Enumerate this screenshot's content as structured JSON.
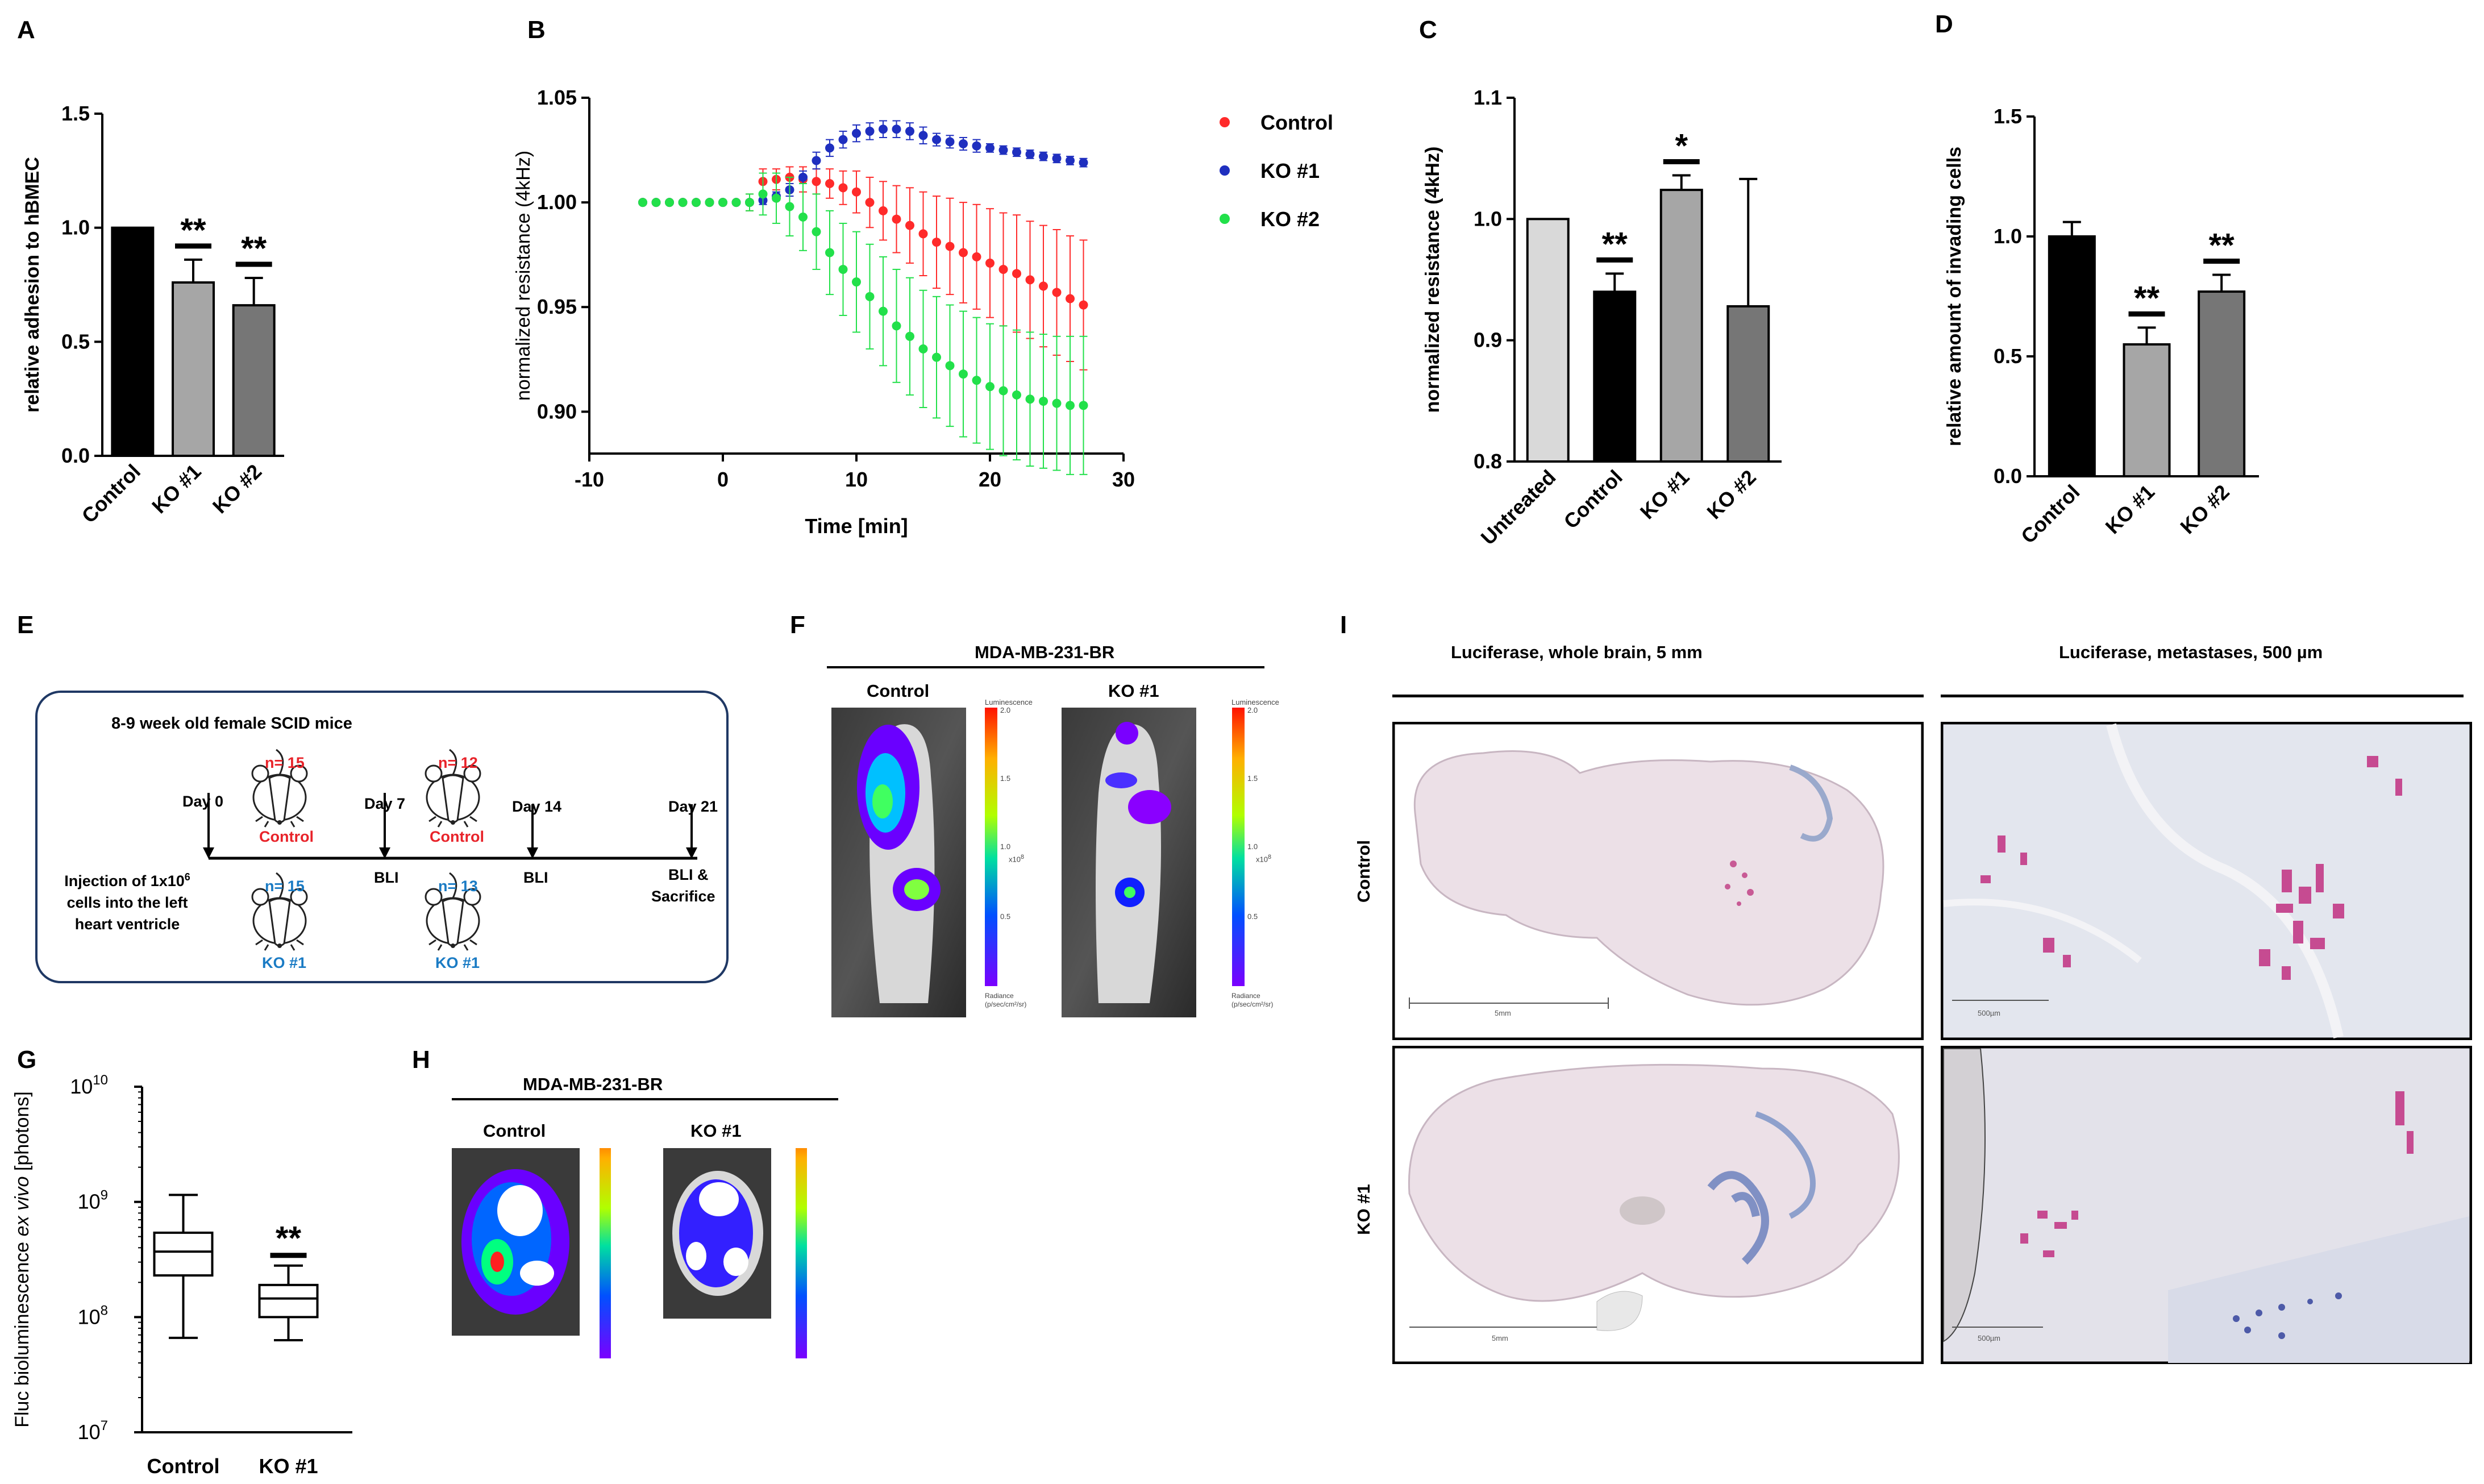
{
  "panel_letters": {
    "A": "A",
    "B": "B",
    "C": "C",
    "D": "D",
    "E": "E",
    "F": "F",
    "G": "G",
    "H": "H",
    "I": "I"
  },
  "chart_data": [
    {
      "panel": "A",
      "type": "bar",
      "title": "",
      "ylabel": "relative adhesion to hBMEC",
      "ylim": [
        0,
        1.5
      ],
      "yticks": [
        0.0,
        0.5,
        1.0,
        1.5
      ],
      "categories": [
        "Control",
        "KO #1",
        "KO #2"
      ],
      "values": [
        1.0,
        0.76,
        0.66
      ],
      "errors": [
        0,
        0.1,
        0.12
      ],
      "colors": [
        "#000000",
        "#a6a6a6",
        "#767676"
      ],
      "significance": [
        "",
        "**",
        "**"
      ]
    },
    {
      "panel": "B",
      "type": "scatter",
      "title": "",
      "xlabel": "Time [min]",
      "ylabel": "normalized resistance (4kHz)",
      "xlim": [
        -10,
        30
      ],
      "ylim": [
        0.88,
        1.05
      ],
      "xticks": [
        -10,
        0,
        10,
        20,
        30
      ],
      "yticks": [
        0.9,
        0.95,
        1.0,
        1.05
      ],
      "series": [
        {
          "name": "Control",
          "color": "#ff2a2a",
          "x": [
            -6,
            -5,
            -4,
            -3,
            -2,
            -1,
            0,
            1,
            2,
            3,
            4,
            5,
            6,
            7,
            8,
            9,
            10,
            11,
            12,
            13,
            14,
            15,
            16,
            17,
            18,
            19,
            20,
            21,
            22,
            23,
            24,
            25,
            26,
            27
          ],
          "y": [
            1.0,
            1.0,
            1.0,
            1.0,
            1.0,
            1.0,
            1.0,
            1.0,
            1.0,
            1.01,
            1.011,
            1.012,
            1.011,
            1.01,
            1.009,
            1.007,
            1.005,
            1.0,
            0.996,
            0.992,
            0.989,
            0.985,
            0.981,
            0.979,
            0.976,
            0.974,
            0.971,
            0.968,
            0.966,
            0.963,
            0.96,
            0.957,
            0.954,
            0.951
          ],
          "err": [
            0,
            0,
            0,
            0,
            0,
            0,
            0,
            0,
            0.004,
            0.006,
            0.005,
            0.005,
            0.006,
            0.006,
            0.007,
            0.008,
            0.01,
            0.012,
            0.014,
            0.016,
            0.018,
            0.02,
            0.022,
            0.023,
            0.024,
            0.025,
            0.026,
            0.027,
            0.028,
            0.028,
            0.029,
            0.03,
            0.03,
            0.031
          ]
        },
        {
          "name": "KO #1",
          "color": "#1f2fbf",
          "x": [
            -6,
            -5,
            -4,
            -3,
            -2,
            -1,
            0,
            1,
            2,
            3,
            4,
            5,
            6,
            7,
            8,
            9,
            10,
            11,
            12,
            13,
            14,
            15,
            16,
            17,
            18,
            19,
            20,
            21,
            22,
            23,
            24,
            25,
            26,
            27
          ],
          "y": [
            1.0,
            1.0,
            1.0,
            1.0,
            1.0,
            1.0,
            1.0,
            1.0,
            1.0,
            1.001,
            1.003,
            1.006,
            1.012,
            1.02,
            1.026,
            1.03,
            1.033,
            1.034,
            1.035,
            1.035,
            1.034,
            1.032,
            1.03,
            1.029,
            1.028,
            1.027,
            1.026,
            1.025,
            1.024,
            1.023,
            1.022,
            1.021,
            1.02,
            1.019
          ],
          "err": [
            0,
            0,
            0,
            0,
            0,
            0,
            0,
            0,
            0.001,
            0.002,
            0.002,
            0.003,
            0.003,
            0.004,
            0.004,
            0.004,
            0.004,
            0.004,
            0.004,
            0.004,
            0.004,
            0.004,
            0.003,
            0.003,
            0.003,
            0.003,
            0.002,
            0.002,
            0.002,
            0.002,
            0.002,
            0.002,
            0.002,
            0.002
          ]
        },
        {
          "name": "KO #2",
          "color": "#22e04a",
          "x": [
            -6,
            -5,
            -4,
            -3,
            -2,
            -1,
            0,
            1,
            2,
            3,
            4,
            5,
            6,
            7,
            8,
            9,
            10,
            11,
            12,
            13,
            14,
            15,
            16,
            17,
            18,
            19,
            20,
            21,
            22,
            23,
            24,
            25,
            26,
            27
          ],
          "y": [
            1.0,
            1.0,
            1.0,
            1.0,
            1.0,
            1.0,
            1.0,
            1.0,
            1.0,
            1.004,
            1.002,
            0.998,
            0.993,
            0.986,
            0.976,
            0.968,
            0.962,
            0.955,
            0.948,
            0.941,
            0.936,
            0.93,
            0.926,
            0.922,
            0.918,
            0.915,
            0.912,
            0.91,
            0.908,
            0.906,
            0.905,
            0.904,
            0.903,
            0.903
          ],
          "err": [
            0,
            0,
            0,
            0,
            0,
            0,
            0,
            0,
            0.004,
            0.01,
            0.012,
            0.014,
            0.016,
            0.018,
            0.02,
            0.022,
            0.024,
            0.025,
            0.026,
            0.027,
            0.028,
            0.028,
            0.029,
            0.029,
            0.03,
            0.03,
            0.03,
            0.031,
            0.031,
            0.032,
            0.032,
            0.032,
            0.033,
            0.033
          ]
        }
      ]
    },
    {
      "panel": "C",
      "type": "bar",
      "title": "",
      "ylabel": "normalized resistance (4kHz)",
      "ylim": [
        0.8,
        1.1
      ],
      "yticks": [
        0.8,
        0.9,
        1.0,
        1.1
      ],
      "categories": [
        "Untreated",
        "Control",
        "KO #1",
        "KO #2"
      ],
      "values": [
        1.0,
        0.94,
        1.024,
        0.928
      ],
      "errors": [
        0,
        0.015,
        0.012,
        0.105
      ],
      "colors": [
        "#d9d9d9",
        "#000000",
        "#a6a6a6",
        "#767676"
      ],
      "significance": [
        "",
        "**",
        "*",
        ""
      ]
    },
    {
      "panel": "D",
      "type": "bar",
      "title": "",
      "ylabel": "relative amount of invading cells",
      "ylim": [
        0,
        1.5
      ],
      "yticks": [
        0.0,
        0.5,
        1.0,
        1.5
      ],
      "categories": [
        "Control",
        "KO #1",
        "KO #2"
      ],
      "values": [
        1.0,
        0.55,
        0.77
      ],
      "errors": [
        0.06,
        0.07,
        0.07
      ],
      "colors": [
        "#000000",
        "#a6a6a6",
        "#767676"
      ],
      "significance": [
        "",
        "**",
        "**"
      ]
    },
    {
      "panel": "G",
      "type": "box",
      "title": "",
      "ylabel_parts": [
        "Fluc bioluminescence ",
        "ex vivo",
        " [photons]"
      ],
      "ylim_log10": [
        7,
        10
      ],
      "yticks": [
        {
          "base": "10",
          "exp": "7"
        },
        {
          "base": "10",
          "exp": "8"
        },
        {
          "base": "10",
          "exp": "9"
        },
        {
          "base": "10",
          "exp": "10"
        }
      ],
      "categories": [
        "Control",
        "KO #1"
      ],
      "boxes": [
        {
          "min": 66000000.0,
          "q1": 230000000.0,
          "median": 370000000.0,
          "q3": 540000000.0,
          "max": 1150000000.0
        },
        {
          "min": 63000000.0,
          "q1": 100000000.0,
          "median": 145000000.0,
          "q3": 190000000.0,
          "max": 280000000.0
        }
      ],
      "significance": [
        "",
        "**"
      ]
    }
  ],
  "panel_E": {
    "mice_label": "8-9 week old female SCID mice",
    "n_control_d0": "n= 15",
    "n_control_d7": "n= 12",
    "n_ko_d0": "n= 15",
    "n_ko_d7": "n= 13",
    "control_label": "Control",
    "ko_label": "KO #1",
    "days": [
      "Day 0",
      "Day 7",
      "Day 14",
      "Day 21"
    ],
    "bli": [
      "BLI",
      "BLI",
      "BLI &",
      "Sacrifice"
    ],
    "injection_line1": "Injection of 1x10",
    "injection_sup": "6",
    "injection_line2": "cells into the left",
    "injection_line3": "heart ventricle",
    "control_color": "#e8232a",
    "ko_color": "#1a7bc4"
  },
  "panel_F": {
    "title": "MDA-MB-231-BR",
    "left_label": "Control",
    "right_label": "KO #1",
    "scale_title": "Luminescence",
    "scale_ticks": [
      "2.0",
      "1.5",
      "1.0",
      "0.5"
    ],
    "scale_unit": "x10",
    "scale_unit_exp": "8",
    "scale_foot_1": "Radiance",
    "scale_foot_2": "(p/sec/cm²/sr)"
  },
  "panel_H": {
    "title": "MDA-MB-231-BR",
    "left_label": "Control",
    "right_label": "KO #1"
  },
  "panel_I": {
    "left_header": "Luciferase, whole brain, 5 mm",
    "right_header": "Luciferase, metastases, 500 µm",
    "row1_label": "Control",
    "row2_label": "KO #1",
    "scale_whole": "5mm",
    "scale_meta": "500µm"
  }
}
